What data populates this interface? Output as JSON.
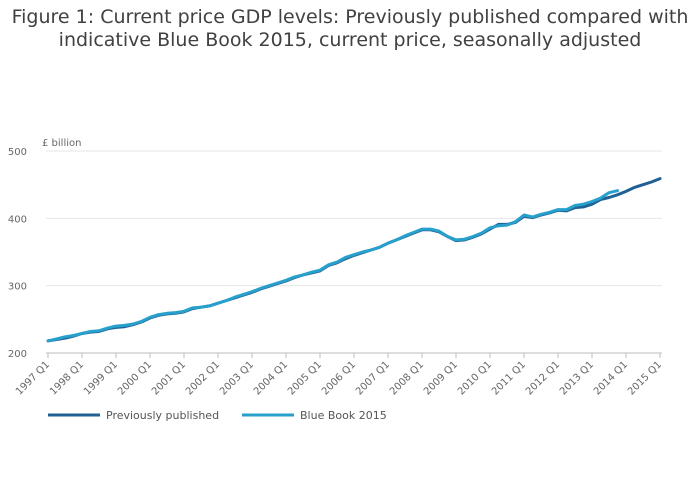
{
  "chart_data": {
    "type": "line",
    "title_line1": "Figure 1: Current price GDP levels: Previously published compared with",
    "title_line2": "indicative Blue Book 2015, current price, seasonally adjusted",
    "ylabel": "£ billion",
    "ylim": [
      200,
      500
    ],
    "yticks": [
      200,
      300,
      400,
      500
    ],
    "xlim": [
      1997,
      2015
    ],
    "xticks": [
      {
        "x": 1997,
        "label": "1997 Q1"
      },
      {
        "x": 1998,
        "label": "1998 Q1"
      },
      {
        "x": 1999,
        "label": "1999 Q1"
      },
      {
        "x": 2000,
        "label": "2000 Q1"
      },
      {
        "x": 2001,
        "label": "2001 Q1"
      },
      {
        "x": 2002,
        "label": "2002 Q1"
      },
      {
        "x": 2003,
        "label": "2003 Q1"
      },
      {
        "x": 2004,
        "label": "2004 Q1"
      },
      {
        "x": 2005,
        "label": "2005 Q1"
      },
      {
        "x": 2006,
        "label": "2006 Q1"
      },
      {
        "x": 2007,
        "label": "2007 Q1"
      },
      {
        "x": 2008,
        "label": "2008 Q1"
      },
      {
        "x": 2009,
        "label": "2009 Q1"
      },
      {
        "x": 2010,
        "label": "2010 Q1"
      },
      {
        "x": 2011,
        "label": "2011 Q1"
      },
      {
        "x": 2012,
        "label": "2012 Q1"
      },
      {
        "x": 2013,
        "label": "2013 Q1"
      },
      {
        "x": 2014,
        "label": "2014 Q1"
      },
      {
        "x": 2015,
        "label": "2015 Q1"
      }
    ],
    "grid": true,
    "legend_position": "bottom-left",
    "series": [
      {
        "name": "Previously published",
        "color": "#206095",
        "x": [
          1997,
          1997.25,
          1997.5,
          1997.75,
          1998,
          1998.25,
          1998.5,
          1998.75,
          1999,
          1999.25,
          1999.5,
          1999.75,
          2000,
          2000.25,
          2000.5,
          2000.75,
          2001,
          2001.25,
          2001.5,
          2001.75,
          2002,
          2002.25,
          2002.5,
          2002.75,
          2003,
          2003.25,
          2003.5,
          2003.75,
          2004,
          2004.25,
          2004.5,
          2004.75,
          2005,
          2005.25,
          2005.5,
          2005.75,
          2006,
          2006.25,
          2006.5,
          2006.75,
          2007,
          2007.25,
          2007.5,
          2007.75,
          2008,
          2008.25,
          2008.5,
          2008.75,
          2009,
          2009.25,
          2009.5,
          2009.75,
          2010,
          2010.25,
          2010.5,
          2010.75,
          2011,
          2011.25,
          2011.5,
          2011.75,
          2012,
          2012.25,
          2012.5,
          2012.75,
          2013,
          2013.25,
          2013.5,
          2013.75,
          2014,
          2014.25,
          2014.5,
          2014.75,
          2015
        ],
        "values": [
          218,
          220,
          222,
          225,
          229,
          231,
          232,
          236,
          238,
          239,
          242,
          246,
          252,
          256,
          258,
          259,
          261,
          266,
          268,
          270,
          274,
          278,
          282,
          286,
          290,
          295,
          299,
          303,
          307,
          312,
          316,
          319,
          322,
          330,
          334,
          340,
          345,
          349,
          353,
          357,
          363,
          368,
          373,
          378,
          383,
          383,
          380,
          373,
          367,
          368,
          372,
          377,
          384,
          391,
          391,
          394,
          403,
          401,
          405,
          408,
          412,
          411,
          416,
          417,
          421,
          428,
          431,
          435,
          440,
          446,
          450,
          454,
          459
        ]
      },
      {
        "name": "Blue Book 2015",
        "color": "#27a0cc",
        "x": [
          1997,
          1997.25,
          1997.5,
          1997.75,
          1998,
          1998.25,
          1998.5,
          1998.75,
          1999,
          1999.25,
          1999.5,
          1999.75,
          2000,
          2000.25,
          2000.5,
          2000.75,
          2001,
          2001.25,
          2001.5,
          2001.75,
          2002,
          2002.25,
          2002.5,
          2002.75,
          2003,
          2003.25,
          2003.5,
          2003.75,
          2004,
          2004.25,
          2004.5,
          2004.75,
          2005,
          2005.25,
          2005.5,
          2005.75,
          2006,
          2006.25,
          2006.5,
          2006.75,
          2007,
          2007.25,
          2007.5,
          2007.75,
          2008,
          2008.25,
          2008.5,
          2008.75,
          2009,
          2009.25,
          2009.5,
          2009.75,
          2010,
          2010.25,
          2010.5,
          2010.75,
          2011,
          2011.25,
          2011.5,
          2011.75,
          2012,
          2012.25,
          2012.5,
          2012.75,
          2013,
          2013.25,
          2013.5,
          2013.75
        ],
        "values": [
          218,
          221,
          224,
          226,
          229,
          232,
          233,
          237,
          240,
          241,
          243,
          247,
          253,
          257,
          259,
          260,
          262,
          267,
          268,
          270,
          274,
          278,
          283,
          287,
          291,
          296,
          300,
          304,
          308,
          313,
          316,
          320,
          323,
          331,
          335,
          342,
          346,
          350,
          353,
          357,
          363,
          368,
          374,
          379,
          384,
          384,
          381,
          373,
          368,
          369,
          373,
          378,
          386,
          389,
          390,
          395,
          405,
          402,
          406,
          409,
          413,
          413,
          419,
          421,
          425,
          430,
          438,
          441
        ]
      }
    ]
  }
}
